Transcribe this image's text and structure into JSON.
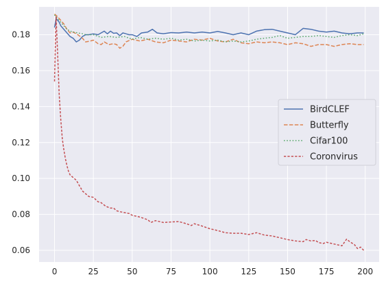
{
  "chart_data": {
    "type": "line",
    "title": "",
    "xlabel": "",
    "ylabel": "",
    "xlim": [
      -9.95,
      208.95
    ],
    "ylim": [
      0.0535,
      0.1955
    ],
    "xticks": [
      0,
      25,
      50,
      75,
      100,
      125,
      150,
      175,
      200
    ],
    "yticks": [
      0.06,
      0.08,
      0.1,
      0.12,
      0.14,
      0.16,
      0.18
    ],
    "grid": true,
    "background": "#eaeaf2",
    "legend_position": "center-right",
    "series": [
      {
        "name": "BirdCLEF",
        "color": "#4c72b0",
        "dash": "solid",
        "x": [
          0,
          1,
          2,
          3,
          4,
          6,
          8,
          10,
          12,
          14,
          16,
          18,
          20,
          22,
          25,
          28,
          30,
          32,
          34,
          36,
          38,
          40,
          42,
          44,
          46,
          48,
          50,
          53,
          56,
          60,
          63,
          66,
          70,
          75,
          80,
          85,
          90,
          95,
          100,
          105,
          110,
          115,
          120,
          125,
          130,
          135,
          140,
          145,
          150,
          155,
          160,
          165,
          170,
          175,
          180,
          185,
          190,
          195,
          199
        ],
        "y": [
          0.184,
          0.189,
          0.188,
          0.187,
          0.185,
          0.183,
          0.181,
          0.179,
          0.178,
          0.176,
          0.177,
          0.179,
          0.18,
          0.18,
          0.1805,
          0.18,
          0.181,
          0.182,
          0.1805,
          0.182,
          0.1808,
          0.181,
          0.1795,
          0.181,
          0.1805,
          0.18,
          0.18,
          0.179,
          0.181,
          0.1815,
          0.183,
          0.181,
          0.1805,
          0.1812,
          0.181,
          0.1815,
          0.181,
          0.1815,
          0.181,
          0.1818,
          0.181,
          0.18,
          0.181,
          0.18,
          0.182,
          0.1828,
          0.183,
          0.182,
          0.181,
          0.18,
          0.1835,
          0.183,
          0.182,
          0.1815,
          0.182,
          0.181,
          0.1805,
          0.181,
          0.181
        ]
      },
      {
        "name": "Butterfly",
        "color": "#dd8452",
        "dash": "dashed",
        "x": [
          0,
          2,
          4,
          6,
          8,
          10,
          12,
          15,
          18,
          20,
          23,
          25,
          28,
          30,
          32,
          35,
          38,
          40,
          42,
          44,
          46,
          50,
          55,
          60,
          65,
          70,
          75,
          80,
          85,
          90,
          95,
          100,
          105,
          110,
          115,
          120,
          125,
          130,
          135,
          140,
          145,
          150,
          155,
          160,
          165,
          170,
          175,
          180,
          185,
          190,
          195,
          199
        ],
        "y": [
          0.1915,
          0.19,
          0.188,
          0.186,
          0.183,
          0.181,
          0.1815,
          0.18,
          0.178,
          0.176,
          0.1765,
          0.177,
          0.175,
          0.1745,
          0.176,
          0.1745,
          0.175,
          0.1745,
          0.1725,
          0.1735,
          0.176,
          0.1775,
          0.1765,
          0.1775,
          0.176,
          0.1755,
          0.177,
          0.1765,
          0.176,
          0.1775,
          0.177,
          0.178,
          0.1765,
          0.176,
          0.1775,
          0.1755,
          0.175,
          0.176,
          0.1755,
          0.176,
          0.1755,
          0.1745,
          0.1755,
          0.175,
          0.1735,
          0.1745,
          0.1745,
          0.1735,
          0.1745,
          0.175,
          0.1745,
          0.1745
        ]
      },
      {
        "name": "Cifar100",
        "color": "#55a868",
        "dash": "dotted",
        "x": [
          0,
          2,
          4,
          6,
          8,
          10,
          12,
          15,
          18,
          20,
          25,
          30,
          35,
          40,
          45,
          50,
          55,
          60,
          65,
          70,
          75,
          80,
          85,
          90,
          95,
          100,
          105,
          110,
          115,
          120,
          125,
          130,
          135,
          140,
          145,
          150,
          155,
          160,
          165,
          170,
          175,
          180,
          185,
          190,
          195,
          199
        ],
        "y": [
          0.191,
          0.189,
          0.187,
          0.185,
          0.183,
          0.182,
          0.1815,
          0.181,
          0.1805,
          0.18,
          0.18,
          0.1785,
          0.179,
          0.1785,
          0.179,
          0.1775,
          0.1785,
          0.1775,
          0.178,
          0.1775,
          0.178,
          0.177,
          0.1775,
          0.1765,
          0.177,
          0.1765,
          0.177,
          0.176,
          0.1765,
          0.176,
          0.1765,
          0.1775,
          0.178,
          0.1785,
          0.1795,
          0.178,
          0.1785,
          0.179,
          0.179,
          0.1795,
          0.179,
          0.1785,
          0.1795,
          0.18,
          0.1795,
          0.1805
        ]
      },
      {
        "name": "Coronvirus",
        "color": "#c44e52",
        "dash": "dashdot",
        "x": [
          0,
          1,
          2,
          3,
          4,
          5,
          6,
          7,
          8,
          9,
          10,
          12,
          14,
          16,
          18,
          20,
          22,
          25,
          28,
          30,
          33,
          36,
          38,
          40,
          42,
          45,
          48,
          50,
          55,
          60,
          62,
          65,
          70,
          75,
          80,
          85,
          88,
          90,
          95,
          100,
          105,
          110,
          115,
          120,
          125,
          130,
          135,
          140,
          145,
          150,
          155,
          160,
          162,
          165,
          168,
          170,
          173,
          175,
          180,
          185,
          188,
          190,
          193,
          195,
          197,
          199
        ],
        "y": [
          0.154,
          0.19,
          0.169,
          0.147,
          0.133,
          0.122,
          0.116,
          0.111,
          0.107,
          0.104,
          0.102,
          0.1005,
          0.099,
          0.096,
          0.093,
          0.0915,
          0.09,
          0.0895,
          0.087,
          0.0865,
          0.0845,
          0.0835,
          0.0835,
          0.082,
          0.0815,
          0.081,
          0.0805,
          0.0795,
          0.0785,
          0.077,
          0.0755,
          0.0765,
          0.0755,
          0.0758,
          0.076,
          0.0748,
          0.0738,
          0.0748,
          0.0735,
          0.072,
          0.071,
          0.0698,
          0.0695,
          0.0695,
          0.0688,
          0.0698,
          0.0685,
          0.068,
          0.067,
          0.066,
          0.0652,
          0.0648,
          0.066,
          0.0652,
          0.0655,
          0.0643,
          0.0638,
          0.0645,
          0.0635,
          0.0625,
          0.0662,
          0.0648,
          0.0632,
          0.061,
          0.0618,
          0.06
        ]
      }
    ]
  }
}
